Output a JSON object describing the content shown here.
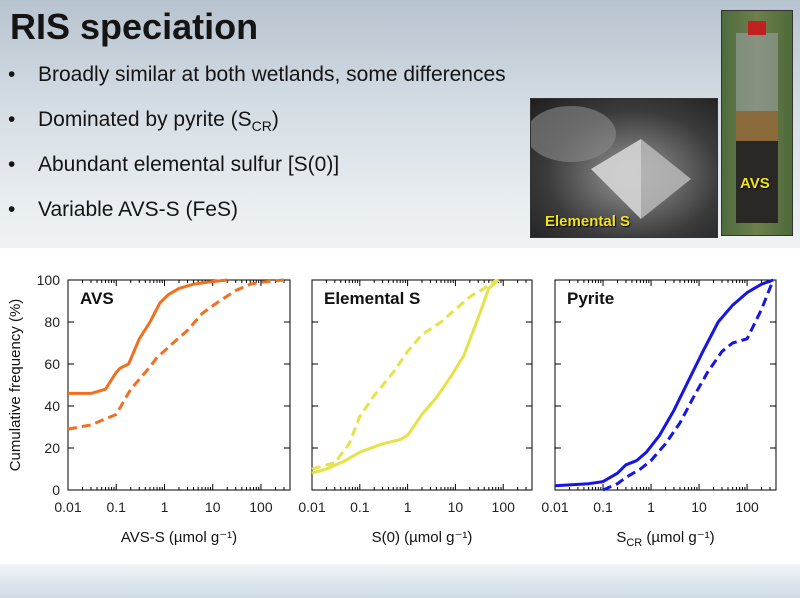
{
  "slide": {
    "title": "RIS speciation",
    "bullets": [
      {
        "text": "Broadly similar at both wetlands, some differences"
      },
      {
        "text": "Dominated by pyrite (S",
        "sub": "CR",
        "after": ")"
      },
      {
        "text": "Abundant elemental sulfur [S(0)]"
      },
      {
        "text": "Variable AVS-S (FeS)"
      }
    ],
    "bullet_glyph": "•",
    "photos": {
      "sem_caption": "Elemental S",
      "core_caption": "AVS"
    }
  },
  "chart_data": [
    {
      "type": "line",
      "panel_label": "AVS",
      "xlabel": "AVS-S (µmol g⁻¹)",
      "ylabel": "Cumulative frequency (%)",
      "x_scale": "log",
      "xlim": [
        0.01,
        400
      ],
      "ylim": [
        0,
        100
      ],
      "x_ticks": [
        "0.01",
        "0.1",
        "1",
        "10",
        "100"
      ],
      "y_ticks": [
        "0",
        "20",
        "40",
        "60",
        "80",
        "100"
      ],
      "color": "#f07020",
      "series": [
        {
          "style": "solid",
          "x": [
            0.01,
            0.03,
            0.06,
            0.1,
            0.12,
            0.18,
            0.3,
            0.5,
            0.8,
            1.2,
            2,
            4,
            8,
            20
          ],
          "y": [
            46,
            46,
            48,
            56,
            58,
            60,
            72,
            80,
            89,
            93,
            96,
            98,
            99,
            100
          ]
        },
        {
          "style": "dashed",
          "x": [
            0.01,
            0.03,
            0.1,
            0.2,
            0.4,
            0.7,
            1.5,
            3,
            6,
            12,
            30,
            60,
            100,
            300
          ],
          "y": [
            29,
            31,
            36,
            48,
            56,
            63,
            70,
            76,
            84,
            89,
            95,
            98,
            99,
            100
          ]
        }
      ]
    },
    {
      "type": "line",
      "panel_label": "Elemental S",
      "xlabel": "S(0) (µmol g⁻¹)",
      "ylabel": "",
      "x_scale": "log",
      "xlim": [
        0.01,
        400
      ],
      "ylim": [
        0,
        100
      ],
      "x_ticks": [
        "0.01",
        "0.1",
        "1",
        "10",
        "100"
      ],
      "y_ticks": [
        "0",
        "20",
        "40",
        "60",
        "80",
        "100"
      ],
      "color": "#e6e24a",
      "series": [
        {
          "style": "solid",
          "x": [
            0.01,
            0.02,
            0.05,
            0.1,
            0.3,
            0.7,
            1,
            2,
            4,
            8,
            15,
            30,
            50,
            80
          ],
          "y": [
            8,
            10,
            14,
            18,
            22,
            24,
            26,
            36,
            44,
            54,
            64,
            82,
            96,
            100
          ]
        },
        {
          "style": "dashed",
          "x": [
            0.01,
            0.03,
            0.06,
            0.1,
            0.2,
            0.5,
            1,
            2,
            5,
            10,
            20,
            40,
            60,
            80
          ],
          "y": [
            10,
            13,
            22,
            35,
            45,
            56,
            66,
            74,
            80,
            86,
            92,
            96,
            99,
            100
          ]
        }
      ]
    },
    {
      "type": "line",
      "panel_label": "Pyrite",
      "xlabel": "S_CR (µmol g⁻¹)",
      "xlabel_base": "S",
      "xlabel_sub": "CR",
      "xlabel_rest": " (µmol g⁻¹)",
      "ylabel": "",
      "x_scale": "log",
      "xlim": [
        0.01,
        400
      ],
      "ylim": [
        0,
        100
      ],
      "x_ticks": [
        "0.01",
        "0.1",
        "1",
        "10",
        "100"
      ],
      "y_ticks": [
        "0",
        "20",
        "40",
        "60",
        "80",
        "100"
      ],
      "color": "#1515e6",
      "series": [
        {
          "style": "solid",
          "x": [
            0.01,
            0.05,
            0.1,
            0.2,
            0.3,
            0.5,
            0.8,
            1.5,
            3,
            6,
            12,
            25,
            50,
            100,
            200,
            350
          ],
          "y": [
            2,
            3,
            4,
            8,
            12,
            14,
            18,
            26,
            38,
            52,
            66,
            80,
            88,
            94,
            98,
            100
          ]
        },
        {
          "style": "dashed",
          "x": [
            0.1,
            0.2,
            0.3,
            0.6,
            1,
            2,
            4,
            8,
            15,
            30,
            50,
            100,
            200,
            350
          ],
          "y": [
            0,
            3,
            6,
            10,
            14,
            22,
            32,
            45,
            56,
            66,
            70,
            72,
            86,
            100
          ]
        }
      ]
    }
  ]
}
